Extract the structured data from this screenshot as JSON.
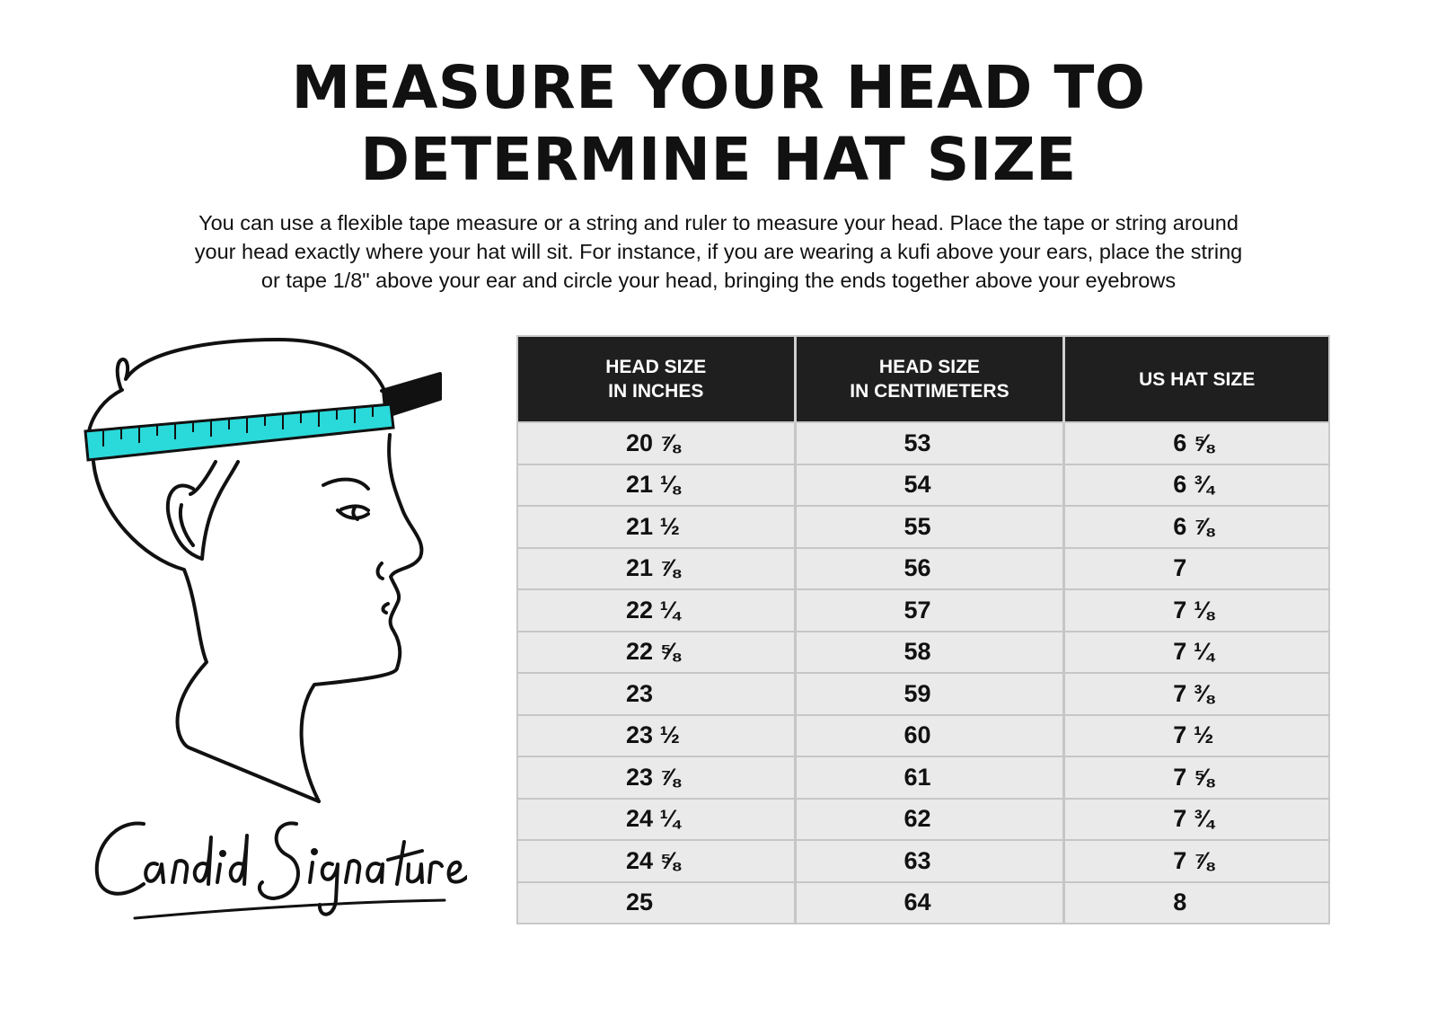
{
  "header": {
    "title_line1": "MEASURE YOUR HEAD TO",
    "title_line2": "DETERMINE HAT SIZE",
    "intro_line1": "You can use a flexible tape measure or a string and ruler to measure your head. Place the tape or string around",
    "intro_line2": "your head exactly where your hat will sit. For instance, if you are wearing a kufi above your ears, place the string",
    "intro_line3": "or tape 1/8\" above your ear and circle your head, bringing the ends together above your eyebrows"
  },
  "illustration": {
    "icon": "head-profile-measuring-tape-icon",
    "tape_color": "#2ad9d9",
    "signature_text": "Candid Signature"
  },
  "size_table": {
    "columns": [
      {
        "line1": "HEAD SIZE",
        "line2": "IN INCHES"
      },
      {
        "line1": "HEAD SIZE",
        "line2": "IN CENTIMETERS"
      },
      {
        "line1": "US HAT SIZE",
        "line2": ""
      }
    ],
    "rows": [
      {
        "inches": "20 ⅞",
        "cm": "53",
        "us": "6 ⅝"
      },
      {
        "inches": "21 ⅛",
        "cm": "54",
        "us": "6 ¾"
      },
      {
        "inches": "21 ½",
        "cm": "55",
        "us": "6 ⅞"
      },
      {
        "inches": "21 ⅞",
        "cm": "56",
        "us": "7"
      },
      {
        "inches": "22 ¼",
        "cm": "57",
        "us": "7 ⅛"
      },
      {
        "inches": "22 ⅝",
        "cm": "58",
        "us": "7 ¼"
      },
      {
        "inches": "23",
        "cm": "59",
        "us": "7 ⅜"
      },
      {
        "inches": "23 ½",
        "cm": "60",
        "us": "7 ½"
      },
      {
        "inches": "23 ⅞",
        "cm": "61",
        "us": "7 ⅝"
      },
      {
        "inches": "24 ¼",
        "cm": "62",
        "us": "7 ¾"
      },
      {
        "inches": "24 ⅝",
        "cm": "63",
        "us": "7 ⅞"
      },
      {
        "inches": "25",
        "cm": "64",
        "us": "8"
      }
    ]
  },
  "colors": {
    "header_bg": "#1f1f1f",
    "row_bg": "#eaeaea",
    "tape": "#2ad9d9"
  }
}
